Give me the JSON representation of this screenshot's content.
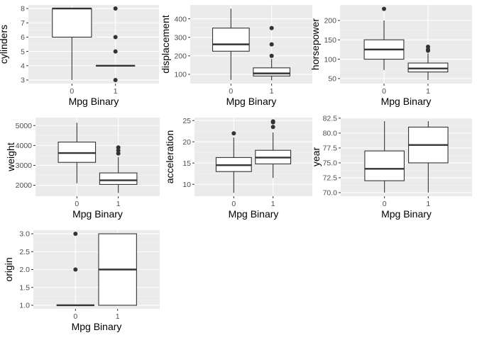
{
  "chart_data": [
    {
      "type": "box",
      "xlabel": "Mpg Binary",
      "ylabel": "cylinders",
      "categories": [
        "0",
        "1"
      ],
      "ylim": [
        2.75,
        8.25
      ],
      "yticks": [
        3,
        4,
        5,
        6,
        7,
        8
      ],
      "ytick_labels": [
        "3",
        "4",
        "5",
        "6",
        "7",
        "8"
      ],
      "boxes": [
        {
          "category": "0",
          "whisker_low": 3,
          "q1": 6,
          "median": 8,
          "q3": 8,
          "whisker_high": 8,
          "outliers": []
        },
        {
          "category": "1",
          "whisker_low": 4,
          "q1": 4,
          "median": 4,
          "q3": 4,
          "whisker_high": 4,
          "outliers": [
            3,
            5,
            6,
            8
          ]
        }
      ]
    },
    {
      "type": "box",
      "xlabel": "Mpg Binary",
      "ylabel": "displacement",
      "categories": [
        "0",
        "1"
      ],
      "ylim": [
        50,
        475
      ],
      "yticks": [
        100,
        200,
        300,
        400
      ],
      "ytick_labels": [
        "100",
        "200",
        "300",
        "400"
      ],
      "boxes": [
        {
          "category": "0",
          "whisker_low": 70,
          "q1": 225,
          "median": 262,
          "q3": 350,
          "whisker_high": 455,
          "outliers": []
        },
        {
          "category": "1",
          "whisker_low": 68,
          "q1": 91,
          "median": 105,
          "q3": 135,
          "whisker_high": 183,
          "outliers": [
            200,
            262,
            350
          ]
        }
      ]
    },
    {
      "type": "box",
      "xlabel": "Mpg Binary",
      "ylabel": "horsepower",
      "categories": [
        "0",
        "1"
      ],
      "ylim": [
        37,
        240
      ],
      "yticks": [
        50,
        100,
        150,
        200
      ],
      "ytick_labels": [
        "50",
        "100",
        "150",
        "200"
      ],
      "boxes": [
        {
          "category": "0",
          "whisker_low": 72,
          "q1": 100,
          "median": 125,
          "q3": 150,
          "whisker_high": 200,
          "outliers": [
            230
          ]
        },
        {
          "category": "1",
          "whisker_low": 46,
          "q1": 67,
          "median": 76,
          "q3": 90,
          "whisker_high": 115,
          "outliers": [
            122,
            125,
            132
          ]
        }
      ]
    },
    {
      "type": "box",
      "xlabel": "Mpg Binary",
      "ylabel": "weight",
      "categories": [
        "0",
        "1"
      ],
      "ylim": [
        1450,
        5400
      ],
      "yticks": [
        2000,
        3000,
        4000,
        5000
      ],
      "ytick_labels": [
        "2000",
        "3000",
        "4000",
        "5000"
      ],
      "boxes": [
        {
          "category": "0",
          "whisker_low": 2100,
          "q1": 3150,
          "median": 3620,
          "q3": 4170,
          "whisker_high": 5140,
          "outliers": []
        },
        {
          "category": "1",
          "whisker_low": 1613,
          "q1": 2040,
          "median": 2250,
          "q3": 2620,
          "whisker_high": 3420,
          "outliers": [
            3600,
            3750,
            3900
          ]
        }
      ]
    },
    {
      "type": "box",
      "xlabel": "Mpg Binary",
      "ylabel": "acceleration",
      "categories": [
        "0",
        "1"
      ],
      "ylim": [
        7.2,
        25.7
      ],
      "yticks": [
        10,
        15,
        20,
        25
      ],
      "ytick_labels": [
        "10",
        "15",
        "20",
        "25"
      ],
      "boxes": [
        {
          "category": "0",
          "whisker_low": 8,
          "q1": 13,
          "median": 14.5,
          "q3": 16.3,
          "whisker_high": 21,
          "outliers": [
            22
          ]
        },
        {
          "category": "1",
          "whisker_low": 11.5,
          "q1": 14.8,
          "median": 16.3,
          "q3": 18,
          "whisker_high": 22.2,
          "outliers": [
            23.5,
            24.6,
            24.8
          ]
        }
      ]
    },
    {
      "type": "box",
      "xlabel": "Mpg Binary",
      "ylabel": "year",
      "categories": [
        "0",
        "1"
      ],
      "ylim": [
        69.4,
        82.6
      ],
      "yticks": [
        70.0,
        72.5,
        75.0,
        77.5,
        80.0,
        82.5
      ],
      "ytick_labels": [
        "70.0",
        "72.5",
        "75.0",
        "77.5",
        "80.0",
        "82.5"
      ],
      "boxes": [
        {
          "category": "0",
          "whisker_low": 70,
          "q1": 72,
          "median": 74,
          "q3": 77,
          "whisker_high": 82,
          "outliers": []
        },
        {
          "category": "1",
          "whisker_low": 70,
          "q1": 75,
          "median": 78,
          "q3": 81,
          "whisker_high": 82,
          "outliers": []
        }
      ]
    },
    {
      "type": "box",
      "xlabel": "Mpg Binary",
      "ylabel": "origin",
      "categories": [
        "0",
        "1"
      ],
      "ylim": [
        0.9,
        3.1
      ],
      "yticks": [
        1.0,
        1.5,
        2.0,
        2.5,
        3.0
      ],
      "ytick_labels": [
        "1.0",
        "1.5",
        "2.0",
        "2.5",
        "3.0"
      ],
      "boxes": [
        {
          "category": "0",
          "whisker_low": 1,
          "q1": 1,
          "median": 1,
          "q3": 1,
          "whisker_high": 1,
          "outliers": [
            2,
            3
          ]
        },
        {
          "category": "1",
          "whisker_low": 1,
          "q1": 1,
          "median": 2,
          "q3": 3,
          "whisker_high": 3,
          "outliers": []
        }
      ]
    }
  ]
}
